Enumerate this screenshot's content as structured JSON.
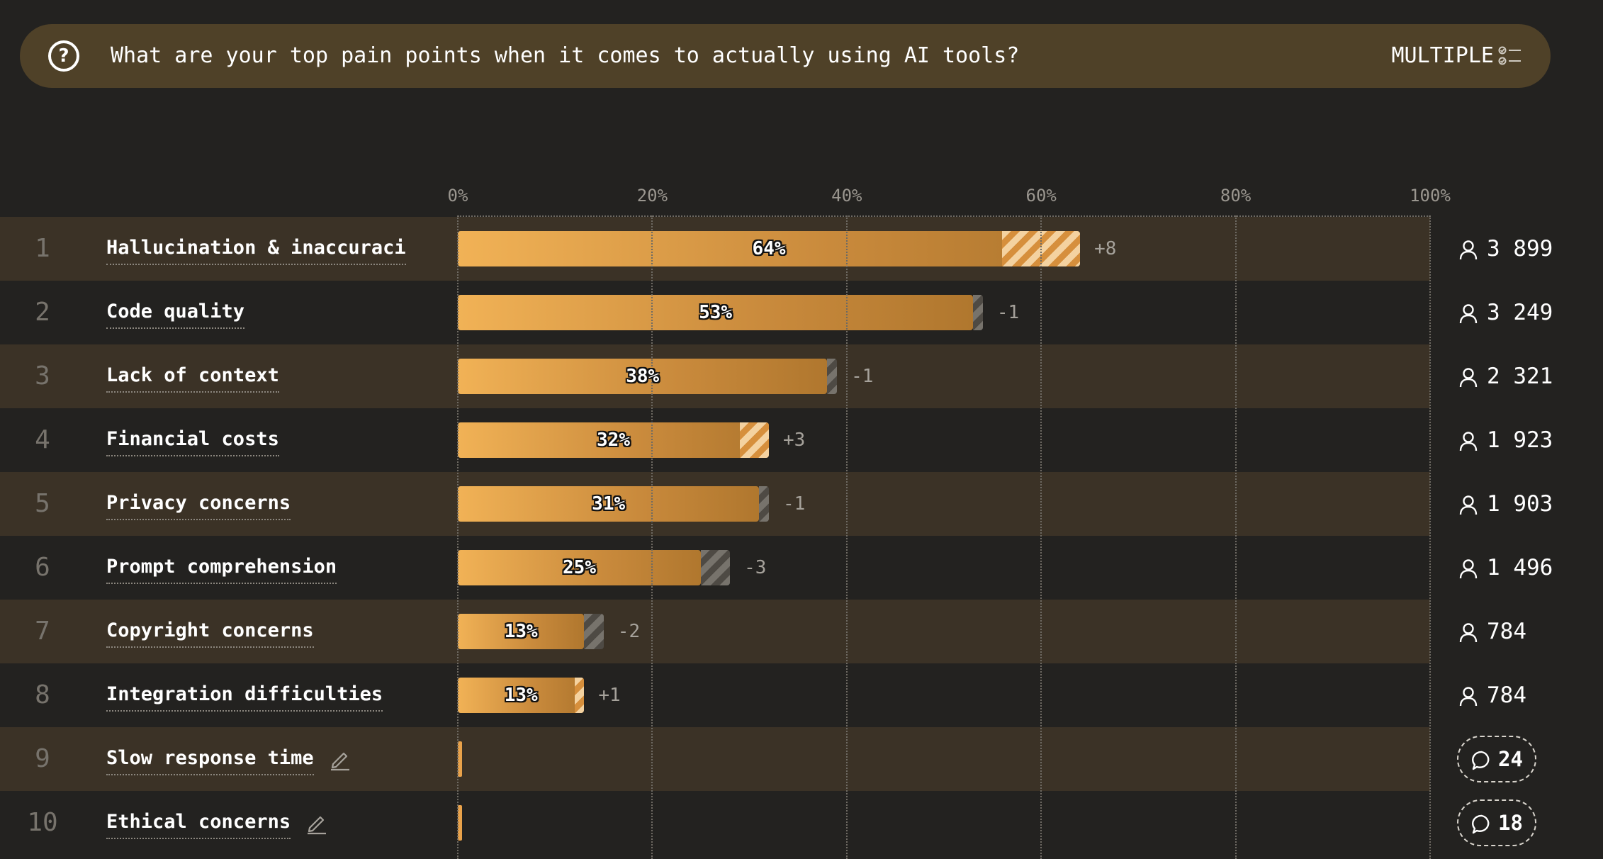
{
  "question": {
    "text": "What are your top pain points when it comes to actually using AI tools?",
    "type_label": "MULTIPLE",
    "icon": "question-circle-icon",
    "type_icon": "checklist-icon"
  },
  "colors": {
    "background": "#232220",
    "header": "#4f4128",
    "bar": "#f1b256",
    "band": "#3b3226"
  },
  "chart_data": {
    "type": "bar",
    "orientation": "horizontal",
    "xlim": [
      0,
      100
    ],
    "ticks": [
      "0%",
      "20%",
      "40%",
      "60%",
      "80%",
      "100%"
    ],
    "tick_values": [
      0,
      20,
      40,
      60,
      80,
      100
    ],
    "grid": true,
    "rows": [
      {
        "rank": "1",
        "label": "Hallucination & inaccuraci",
        "value": 64,
        "value_label": "64%",
        "delta": 8,
        "delta_label": "+8",
        "count": "3 899",
        "count_type": "respondents",
        "editable": false
      },
      {
        "rank": "2",
        "label": "Code quality",
        "value": 53,
        "value_label": "53%",
        "delta": -1,
        "delta_label": "-1",
        "count": "3 249",
        "count_type": "respondents",
        "editable": false
      },
      {
        "rank": "3",
        "label": "Lack of context",
        "value": 38,
        "value_label": "38%",
        "delta": -1,
        "delta_label": "-1",
        "count": "2 321",
        "count_type": "respondents",
        "editable": false
      },
      {
        "rank": "4",
        "label": "Financial costs",
        "value": 32,
        "value_label": "32%",
        "delta": 3,
        "delta_label": "+3",
        "count": "1 923",
        "count_type": "respondents",
        "editable": false
      },
      {
        "rank": "5",
        "label": "Privacy concerns",
        "value": 31,
        "value_label": "31%",
        "delta": -1,
        "delta_label": "-1",
        "count": "1 903",
        "count_type": "respondents",
        "editable": false
      },
      {
        "rank": "6",
        "label": "Prompt comprehension",
        "value": 25,
        "value_label": "25%",
        "delta": -3,
        "delta_label": "-3",
        "count": "1 496",
        "count_type": "respondents",
        "editable": false
      },
      {
        "rank": "7",
        "label": "Copyright concerns",
        "value": 13,
        "value_label": "13%",
        "delta": -2,
        "delta_label": "-2",
        "count": "784",
        "count_type": "respondents",
        "editable": false
      },
      {
        "rank": "8",
        "label": "Integration difficulties",
        "value": 13,
        "value_label": "13%",
        "delta": 1,
        "delta_label": "+1",
        "count": "784",
        "count_type": "respondents",
        "editable": false
      },
      {
        "rank": "9",
        "label": "Slow response time",
        "value": 0.4,
        "value_label": "",
        "delta": null,
        "delta_label": "",
        "count": "24",
        "count_type": "comments",
        "editable": true
      },
      {
        "rank": "10",
        "label": "Ethical concerns",
        "value": 0.3,
        "value_label": "",
        "delta": null,
        "delta_label": "",
        "count": "18",
        "count_type": "comments",
        "editable": true
      }
    ]
  }
}
